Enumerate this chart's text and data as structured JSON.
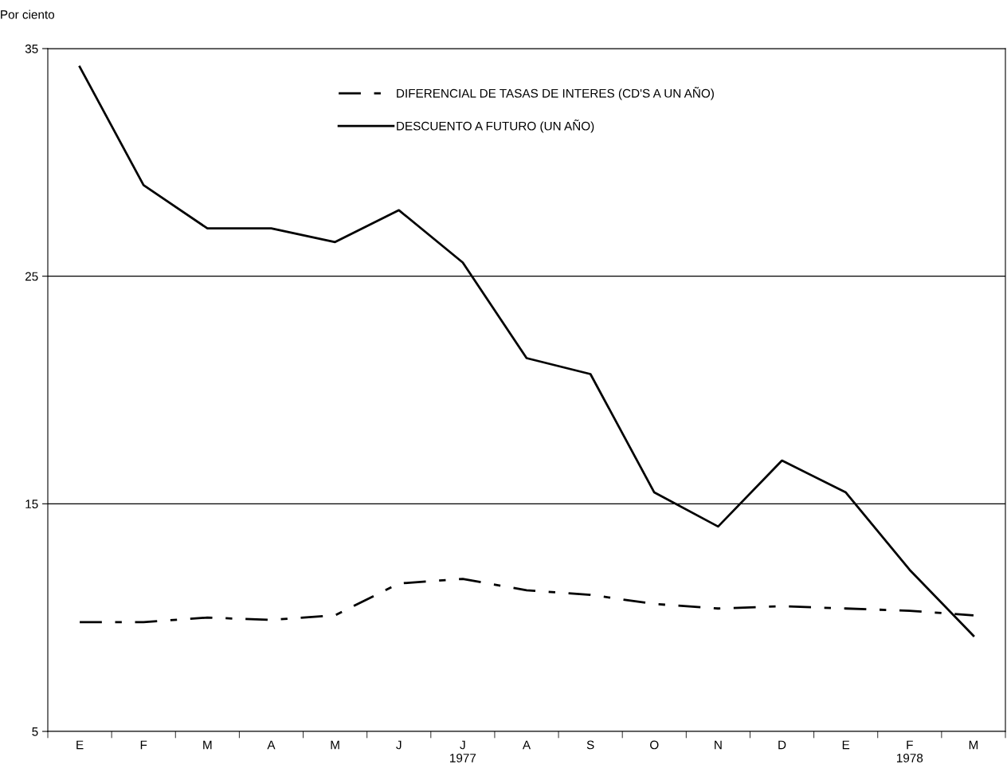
{
  "chart_data": {
    "type": "line",
    "ylabel": "Por ciento",
    "categories": [
      "E",
      "F",
      "M",
      "A",
      "M",
      "J",
      "J\n1977",
      "A",
      "S",
      "O",
      "N",
      "D",
      "E",
      "F\n1978",
      "M"
    ],
    "series": [
      {
        "name": "DIFERENCIAL DE TASAS DE INTERES (CD'S A UN AÑO)",
        "color": "#000000",
        "line_style": "dashdot",
        "values": [
          9.8,
          9.8,
          10.0,
          9.9,
          10.1,
          11.5,
          11.7,
          11.2,
          11.0,
          10.6,
          10.4,
          10.5,
          10.4,
          10.3,
          10.1
        ]
      },
      {
        "name": "DESCUENTO A FUTURO (UN AÑO)",
        "color": "#000000",
        "line_style": "solid",
        "values": [
          34.2,
          29.0,
          27.1,
          27.1,
          26.5,
          27.9,
          25.6,
          21.4,
          20.7,
          15.5,
          14.0,
          16.9,
          15.5,
          12.1,
          9.2
        ]
      }
    ],
    "ylim": [
      5,
      35
    ],
    "yticks": [
      5,
      15,
      25,
      35
    ],
    "grid": "y",
    "legend": "top",
    "marker": "none"
  }
}
